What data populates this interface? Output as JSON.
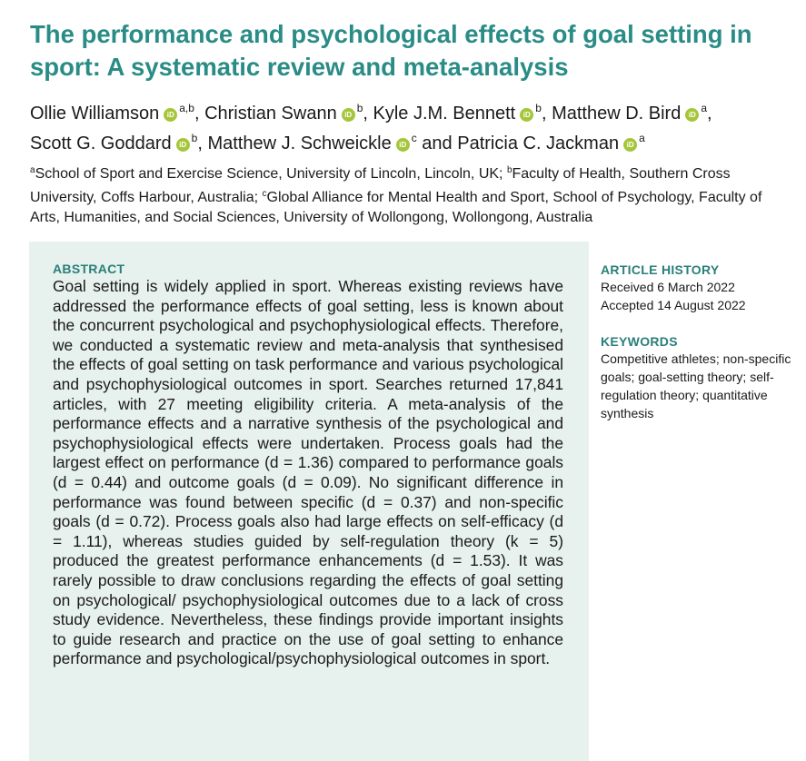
{
  "title": "The performance and psychological effects of goal setting in sport: A systematic review and meta-analysis",
  "authors": [
    {
      "name": "Ollie Williamson",
      "aff": "a,b",
      "sep": ","
    },
    {
      "name": "Christian Swann",
      "aff": "b",
      "sep": ","
    },
    {
      "name": "Kyle J.M. Bennett",
      "aff": "b",
      "sep": ","
    },
    {
      "name": "Matthew D. Bird",
      "aff": "a",
      "sep": ","
    },
    {
      "name": "Scott G. Goddard",
      "aff": "b",
      "sep": ","
    },
    {
      "name": "Matthew J. Schweickle",
      "aff": "c",
      "sep": " and"
    },
    {
      "name": "Patricia C. Jackman",
      "aff": "a",
      "sep": ""
    }
  ],
  "orcid_badge": "iD",
  "affiliations": [
    {
      "mark": "a",
      "text": "School of Sport and Exercise Science, University of Lincoln, Lincoln, UK; "
    },
    {
      "mark": "b",
      "text": "Faculty of Health, Southern Cross University, Coffs Harbour, Australia; "
    },
    {
      "mark": "c",
      "text": "Global Alliance for Mental Health and Sport, School of Psychology, Faculty of Arts, Humanities, and Social Sciences, University of Wollongong, Wollongong, Australia"
    }
  ],
  "abstract": {
    "heading": "ABSTRACT",
    "text": "Goal setting is widely applied in sport. Whereas existing reviews have addressed the performance effects of goal setting, less is known about the concurrent psychological and psychophysiological effects. Therefore, we conducted a systematic review and meta-analysis that synthesised the effects of goal setting on task performance and various psychological and psychophysiological outcomes in sport. Searches returned 17,841 articles, with 27 meeting eligibility criteria. A meta-analysis of the performance effects and a narrative synthesis of the psychological and psychophysiological effects were undertaken. Process goals had the largest effect on performance (d = 1.36) compared to performance goals (d = 0.44) and outcome goals (d = 0.09). No significant difference in performance was found between specific (d = 0.37) and non-specific goals (d = 0.72). Process goals also had large effects on self-efficacy (d = 1.11), whereas studies guided by self-regulation theory (k = 5) produced the greatest performance enhancements (d = 1.53). It was rarely possible to draw conclusions regarding the effects of goal setting on psychological/ psychophysiological outcomes due to a lack of cross study evidence. Nevertheless, these findings provide important insights to guide research and practice on the use of goal setting to enhance performance and psychological/psychophysiological outcomes in sport."
  },
  "article_history": {
    "heading": "ARTICLE HISTORY",
    "received": "Received 6 March 2022",
    "accepted": "Accepted 14 August 2022"
  },
  "keywords": {
    "heading": "KEYWORDS",
    "text": "Competitive athletes; non-specific goals; goal-setting theory; self-regulation theory; quantitative synthesis"
  },
  "colors": {
    "accent": "#2a8c86",
    "abstract_bg": "#e7f1ee",
    "orcid": "#a5c63a"
  }
}
